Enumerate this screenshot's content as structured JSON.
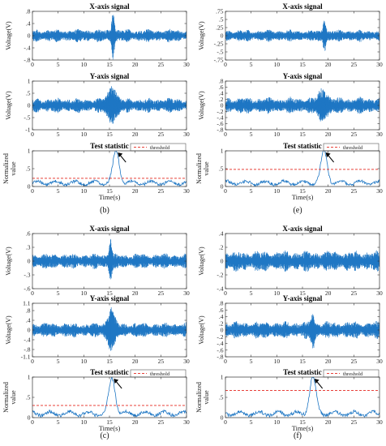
{
  "colors": {
    "signal": "#1f77c4",
    "threshold": "#e8413a",
    "axis": "#333333",
    "arrow": "#000000"
  },
  "chart_data": [
    {
      "panel": "b",
      "caption": "(b)",
      "charts": [
        {
          "type": "line",
          "title": "X-axis signal",
          "ylabel": "Voltage(V)",
          "ylim": [
            -0.8,
            0.8
          ],
          "yticks": [
            -0.8,
            -0.4,
            0,
            0.4,
            0.8
          ],
          "xlim": [
            0,
            30
          ],
          "xticks": [
            0,
            5,
            10,
            15,
            20,
            25,
            30
          ],
          "noise_amplitude": 0.14,
          "events": [
            {
              "t": 15.7,
              "peak": 0.72,
              "width": 0.5
            }
          ]
        },
        {
          "type": "line",
          "title": "Y-axis signal",
          "ylabel": "Voltage(V)",
          "ylim": [
            -1,
            1
          ],
          "yticks": [
            -1,
            -0.5,
            0,
            0.5,
            1
          ],
          "xlim": [
            0,
            30
          ],
          "xticks": [
            0,
            5,
            10,
            15,
            20,
            25,
            30
          ],
          "noise_amplitude": 0.2,
          "events": [
            {
              "t": 15.5,
              "peak": 0.65,
              "width": 1.5
            }
          ]
        },
        {
          "type": "line",
          "title": "Test statistic",
          "ylabel": "Normalized value",
          "xlabel": "Time(s)",
          "ylim": [
            0,
            1
          ],
          "yticks": [
            0,
            0.5,
            1
          ],
          "xlim": [
            0,
            30
          ],
          "xticks": [
            0,
            5,
            10,
            15,
            20,
            25,
            30
          ],
          "legend": "threshold",
          "threshold": 0.23,
          "peak": {
            "t": 16.3,
            "value": 1.0
          }
        }
      ]
    },
    {
      "panel": "e",
      "caption": "(e)",
      "charts": [
        {
          "type": "line",
          "title": "X-axis signal",
          "ylabel": "Voltage(V)",
          "ylim": [
            -0.75,
            0.75
          ],
          "yticks": [
            -0.75,
            -0.5,
            -0.25,
            0,
            0.25,
            0.5,
            0.75
          ],
          "xlim": [
            0,
            30
          ],
          "xticks": [
            0,
            5,
            10,
            15,
            20,
            25,
            30
          ],
          "noise_amplitude": 0.12,
          "events": [
            {
              "t": 19.3,
              "peak": 0.45,
              "width": 0.5
            }
          ]
        },
        {
          "type": "line",
          "title": "Y-axis signal",
          "ylabel": "Voltage(V)",
          "ylim": [
            -0.8,
            0.8
          ],
          "yticks": [
            -0.8,
            -0.6,
            -0.4,
            -0.2,
            0,
            0.2,
            0.4,
            0.6,
            0.8
          ],
          "xlim": [
            0,
            30
          ],
          "xticks": [
            0,
            5,
            10,
            15,
            20,
            25,
            30
          ],
          "noise_amplitude": 0.18,
          "events": [
            {
              "t": 19,
              "peak": 0.42,
              "width": 1.5
            }
          ]
        },
        {
          "type": "line",
          "title": "Test statistic",
          "ylabel": "Normalized value",
          "xlabel": "Time(s)",
          "ylim": [
            0,
            1
          ],
          "yticks": [
            0,
            0.5,
            1
          ],
          "xlim": [
            0,
            30
          ],
          "xticks": [
            0,
            5,
            10,
            15,
            20,
            25,
            30
          ],
          "legend": "threshold",
          "threshold": 0.48,
          "peak": {
            "t": 19.2,
            "value": 1.0
          }
        }
      ]
    },
    {
      "panel": "c",
      "caption": "(c)",
      "charts": [
        {
          "type": "line",
          "title": "X-axis signal",
          "ylabel": "Voltage(V)",
          "ylim": [
            -0.6,
            0.6
          ],
          "yticks": [
            -0.6,
            -0.3,
            0,
            0.3,
            0.6
          ],
          "xlim": [
            0,
            30
          ],
          "xticks": [
            0,
            5,
            10,
            15,
            20,
            25,
            30
          ],
          "noise_amplitude": 0.11,
          "events": [
            {
              "t": 15.2,
              "peak": 0.42,
              "width": 0.5
            }
          ]
        },
        {
          "type": "line",
          "title": "Y-axis signal",
          "ylabel": "Voltage(V)",
          "ylim": [
            -1.1,
            1.1
          ],
          "yticks": [
            -1.1,
            -0.8,
            -0.4,
            0,
            0.4,
            0.8,
            1.1
          ],
          "xlim": [
            0,
            30
          ],
          "xticks": [
            0,
            5,
            10,
            15,
            20,
            25,
            30
          ],
          "noise_amplitude": 0.2,
          "events": [
            {
              "t": 15.3,
              "peak": 0.75,
              "width": 1.2
            }
          ]
        },
        {
          "type": "line",
          "title": "Test statistic",
          "ylabel": "Normalized value",
          "xlabel": "Time(s)",
          "ylim": [
            0,
            1
          ],
          "yticks": [
            0,
            0.5,
            1
          ],
          "xlim": [
            0,
            30
          ],
          "xticks": [
            0,
            5,
            10,
            15,
            20,
            25,
            30
          ],
          "legend": "threshold",
          "threshold": 0.3,
          "peak": {
            "t": 15.5,
            "value": 1.0
          }
        }
      ]
    },
    {
      "panel": "f",
      "caption": "(f)",
      "charts": [
        {
          "type": "line",
          "title": "X-axis signal",
          "ylabel": "Voltage(V)",
          "ylim": [
            -0.4,
            0.4
          ],
          "yticks": [
            -0.4,
            -0.2,
            0,
            0.2,
            0.4
          ],
          "xlim": [
            0,
            30
          ],
          "xticks": [
            0,
            5,
            10,
            15,
            20,
            25,
            30
          ],
          "noise_amplitude": 0.1,
          "events": []
        },
        {
          "type": "line",
          "title": "Y-axis signal",
          "ylabel": "Voltage(V)",
          "ylim": [
            -0.8,
            0.8
          ],
          "yticks": [
            -0.8,
            -0.6,
            -0.4,
            -0.2,
            0,
            0.2,
            0.4,
            0.6,
            0.8
          ],
          "xlim": [
            0,
            30
          ],
          "xticks": [
            0,
            5,
            10,
            15,
            20,
            25,
            30
          ],
          "noise_amplitude": 0.17,
          "events": [
            {
              "t": 17,
              "peak": 0.45,
              "width": 0.6
            }
          ]
        },
        {
          "type": "line",
          "title": "Test statistic",
          "ylabel": "Normalized value",
          "xlabel": "Time(s)",
          "ylim": [
            0,
            1
          ],
          "yticks": [
            0,
            0.5,
            1
          ],
          "xlim": [
            0,
            30
          ],
          "xticks": [
            0,
            5,
            10,
            15,
            20,
            25,
            30
          ],
          "legend": "threshold",
          "threshold": 0.67,
          "peak": {
            "t": 17,
            "value": 1.0
          }
        }
      ]
    }
  ]
}
